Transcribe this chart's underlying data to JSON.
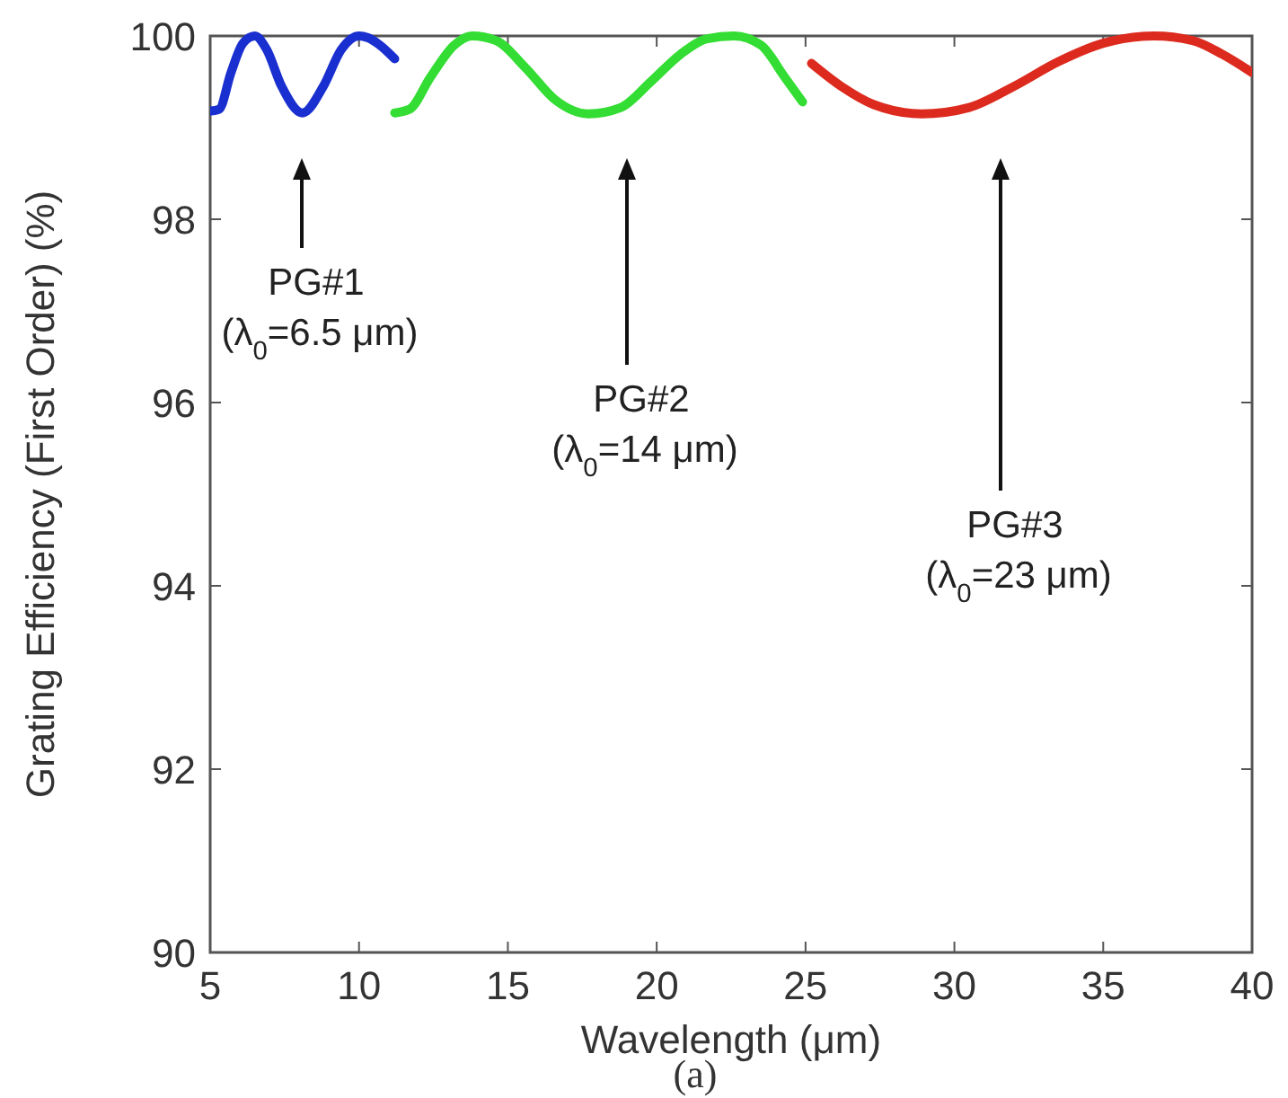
{
  "chart_data": {
    "type": "line",
    "xlabel": "Wavelength (μm)",
    "ylabel": "Grating Efficiency (First Order) (%)",
    "xlim": [
      5,
      40
    ],
    "ylim": [
      90,
      100
    ],
    "xticks": [
      5,
      10,
      15,
      20,
      25,
      30,
      35,
      40
    ],
    "yticks": [
      90,
      92,
      94,
      96,
      98,
      100
    ],
    "grid": false,
    "series": [
      {
        "color": "#1a2fd0",
        "x": [
          5,
          5.3,
          5.7,
          6.1,
          6.5,
          6.9,
          7.4,
          8.1,
          8.8,
          9.4,
          10.0,
          10.3,
          10.7,
          11.2
        ],
        "values": [
          99.18,
          99.2,
          99.6,
          99.92,
          100,
          99.85,
          99.45,
          99.16,
          99.45,
          99.85,
          100,
          99.98,
          99.9,
          99.75
        ]
      },
      {
        "color": "#33dd33",
        "x": [
          11.2,
          11.7,
          12.4,
          13.2,
          13.8,
          14.6,
          15.6,
          16.6,
          17.7,
          18.8,
          19.8,
          20.8,
          21.7,
          22.6,
          23.5,
          24.3,
          24.9
        ],
        "values": [
          99.16,
          99.2,
          99.55,
          99.9,
          100,
          99.95,
          99.65,
          99.3,
          99.15,
          99.22,
          99.5,
          99.8,
          99.97,
          100,
          99.9,
          99.55,
          99.28
        ]
      },
      {
        "color": "#dd2a1e",
        "x": [
          25.2,
          26.2,
          27.3,
          28.9,
          30.5,
          32,
          33.5,
          35,
          36.7,
          38,
          39,
          40
        ],
        "values": [
          99.7,
          99.45,
          99.25,
          99.15,
          99.22,
          99.45,
          99.72,
          99.92,
          100,
          99.95,
          99.8,
          99.6
        ]
      }
    ],
    "annotations": [
      "PG#1\n(λ$_{0}$=6.5 μm)",
      "PG#2\n(λ$_{0}$=14 μm)",
      "PG#3\n(λ$_{0}$=23 μm)",
      "(a)"
    ]
  }
}
